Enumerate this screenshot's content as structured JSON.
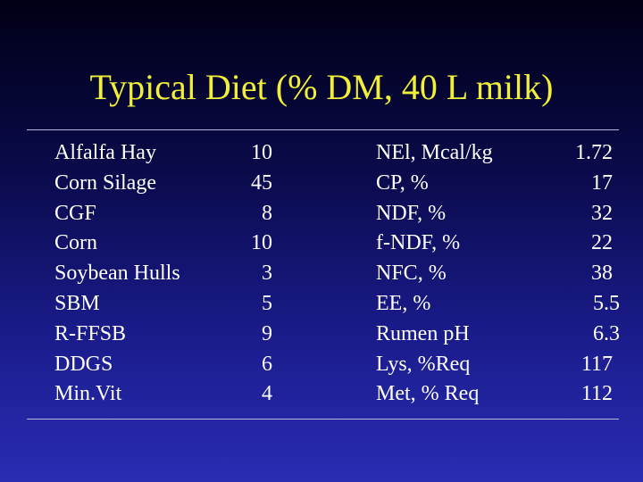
{
  "slide": {
    "title": "Typical Diet (% DM, 40 L milk)"
  },
  "ingredients": [
    {
      "name": "Alfalfa Hay",
      "amount": "10"
    },
    {
      "name": "Corn Silage",
      "amount": "45"
    },
    {
      "name": "CGF",
      "amount": "8"
    },
    {
      "name": "Corn",
      "amount": "10"
    },
    {
      "name": "Soybean Hulls",
      "amount": "3"
    },
    {
      "name": "SBM",
      "amount": "5"
    },
    {
      "name": "R-FFSB",
      "amount": "9"
    },
    {
      "name": "DDGS",
      "amount": "6"
    },
    {
      "name": "Min.Vit",
      "amount": "4"
    }
  ],
  "nutrients": [
    {
      "name": "NEl, Mcal/kg",
      "value": "1.72"
    },
    {
      "name": "CP, %",
      "value": "17"
    },
    {
      "name": "NDF, %",
      "value": "32"
    },
    {
      "name": "f-NDF, %",
      "value": "22"
    },
    {
      "name": "NFC, %",
      "value": "38"
    },
    {
      "name": "EE, %",
      "value": "5.5"
    },
    {
      "name": "Rumen pH",
      "value": "6.3"
    },
    {
      "name": "Lys, %Req",
      "value": "117"
    },
    {
      "name": "Met, % Req",
      "value": "112"
    }
  ],
  "colors": {
    "title": "#f2ef3a",
    "text": "#ffffff",
    "rule": "#b8b8d8",
    "background_top": "#000016",
    "background_bottom": "#2a2cb4"
  }
}
